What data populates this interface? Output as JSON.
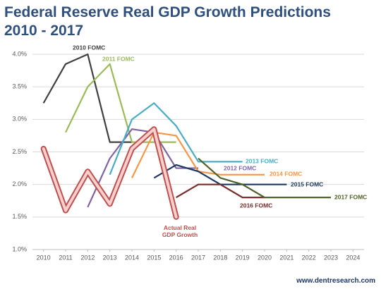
{
  "chart_data": {
    "type": "line",
    "title": "Federal Reserve Real GDP Growth Predictions",
    "subtitle": "2010 - 2017",
    "source": "www.dentresearch.com",
    "x": [
      2010,
      2011,
      2012,
      2013,
      2014,
      2015,
      2016,
      2017,
      2018,
      2019,
      2020,
      2021,
      2022,
      2023,
      2024
    ],
    "xlim": [
      2009.5,
      2024.5
    ],
    "xticks": [
      2010,
      2011,
      2012,
      2013,
      2014,
      2015,
      2016,
      2017,
      2018,
      2019,
      2020,
      2021,
      2022,
      2023,
      2024
    ],
    "ylim": [
      1.0,
      4.0
    ],
    "yticks": [
      {
        "value": 1.0,
        "label": "1.0%"
      },
      {
        "value": 1.5,
        "label": "1.5%"
      },
      {
        "value": 2.0,
        "label": "2.0%"
      },
      {
        "value": 2.5,
        "label": "2.5%"
      },
      {
        "value": 3.0,
        "label": "3.0%"
      },
      {
        "value": 3.5,
        "label": "3.5%"
      },
      {
        "value": 4.0,
        "label": "4.0%"
      }
    ],
    "grid": true,
    "series": [
      {
        "name": "2010 FOMC",
        "color": "#404040",
        "values": [
          3.25,
          3.85,
          4.0,
          2.65,
          2.65,
          null,
          null,
          null,
          null,
          null,
          null,
          null,
          null,
          null,
          null
        ]
      },
      {
        "name": "2011 FOMC",
        "color": "#9bbb59",
        "values": [
          null,
          2.8,
          3.5,
          3.85,
          2.65,
          2.65,
          2.65,
          null,
          null,
          null,
          null,
          null,
          null,
          null,
          null
        ]
      },
      {
        "name": "2012 FOMC",
        "color": "#8064a2",
        "values": [
          null,
          null,
          1.65,
          2.4,
          2.85,
          2.8,
          2.25,
          2.25,
          null,
          null,
          null,
          null,
          null,
          null,
          null
        ]
      },
      {
        "name": "2013 FOMC",
        "color": "#4bacc6",
        "values": [
          null,
          null,
          null,
          2.15,
          3.0,
          3.25,
          2.9,
          2.35,
          2.35,
          2.35,
          null,
          null,
          null,
          null,
          null
        ]
      },
      {
        "name": "2014 FOMC",
        "color": "#f79646",
        "values": [
          null,
          null,
          null,
          null,
          2.1,
          2.8,
          2.75,
          2.2,
          2.15,
          2.15,
          2.15,
          null,
          null,
          null,
          null
        ]
      },
      {
        "name": "2015 FOMC",
        "color": "#1f3864",
        "values": [
          null,
          null,
          null,
          null,
          null,
          2.1,
          2.3,
          2.2,
          2.0,
          2.0,
          2.0,
          2.0,
          null,
          null,
          null
        ]
      },
      {
        "name": "2016 FOMC",
        "color": "#7b2c2c",
        "values": [
          null,
          null,
          null,
          null,
          null,
          null,
          1.8,
          2.0,
          2.0,
          1.8,
          1.8,
          null,
          null,
          null,
          null
        ]
      },
      {
        "name": "2017 FOMC",
        "color": "#4f6228",
        "values": [
          null,
          null,
          null,
          null,
          null,
          null,
          null,
          2.4,
          2.1,
          2.0,
          1.8,
          1.8,
          1.8,
          1.8,
          null
        ]
      },
      {
        "name": "Actual Real GDP Growth",
        "color": "#c0504d",
        "values": [
          2.55,
          1.6,
          2.2,
          1.7,
          2.55,
          2.85,
          1.5,
          null,
          null,
          null,
          null,
          null,
          null,
          null,
          null
        ]
      }
    ]
  }
}
